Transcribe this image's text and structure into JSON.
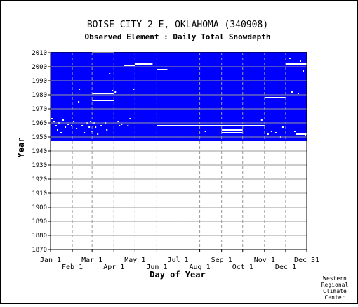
{
  "chart_data": {
    "type": "heatmap",
    "title": "BOISE CITY 2 E, OKLAHOMA   (340908)",
    "subtitle": "Observed Element : Daily Total Snowdepth",
    "xlabel": "Day of Year",
    "ylabel": "Year",
    "credit": [
      "Western",
      "Regional",
      "Climate",
      "Center"
    ],
    "x_ticks_upper": [
      {
        "label": "Jan 1",
        "day": 1
      },
      {
        "label": "Mar 1",
        "day": 60
      },
      {
        "label": "May 1",
        "day": 121
      },
      {
        "label": "Jul 1",
        "day": 182
      },
      {
        "label": "Sep 1",
        "day": 244
      },
      {
        "label": "Nov 1",
        "day": 305
      },
      {
        "label": "Dec 31",
        "day": 365
      }
    ],
    "x_ticks_lower": [
      {
        "label": "Feb 1",
        "day": 32
      },
      {
        "label": "Apr 1",
        "day": 91
      },
      {
        "label": "Jun 1",
        "day": 152
      },
      {
        "label": "Aug 1",
        "day": 213
      },
      {
        "label": "Oct 1",
        "day": 274
      },
      {
        "label": "Dec 1",
        "day": 335
      }
    ],
    "y_ticks": [
      1870,
      1880,
      1890,
      1900,
      1910,
      1920,
      1930,
      1940,
      1950,
      1960,
      1970,
      1980,
      1990,
      2000,
      2010
    ],
    "xlim": [
      1,
      365
    ],
    "ylim": [
      1870,
      2010
    ],
    "record_years": [
      1948,
      2010
    ],
    "fill_color": "#0000ff",
    "gap_color": "#ffffff",
    "grid_color": "#999999",
    "missing_gaps": [
      {
        "year": 2010,
        "day_start": 60,
        "day_end": 91
      },
      {
        "year": 2001,
        "day_start": 105,
        "day_end": 121
      },
      {
        "year": 2002,
        "day_start": 121,
        "day_end": 146
      },
      {
        "year": 1998,
        "day_start": 152,
        "day_end": 167
      },
      {
        "year": 1981,
        "day_start": 60,
        "day_end": 91
      },
      {
        "year": 1976,
        "day_start": 60,
        "day_end": 91
      },
      {
        "year": 1978,
        "day_start": 305,
        "day_end": 335
      },
      {
        "year": 2002,
        "day_start": 335,
        "day_end": 365
      },
      {
        "year": 1958,
        "day_start": 152,
        "day_end": 305
      },
      {
        "year": 1955,
        "day_start": 244,
        "day_end": 274
      },
      {
        "year": 1953,
        "day_start": 244,
        "day_end": 274
      },
      {
        "year": 1952,
        "day_start": 349,
        "day_end": 365
      }
    ],
    "missing_outside": [
      {
        "year": 1948,
        "day_start": 121,
        "day_end": 152
      }
    ],
    "scattered_gaps": [
      [
        2,
        1963
      ],
      [
        5,
        1961
      ],
      [
        8,
        1958
      ],
      [
        10,
        1955
      ],
      [
        12,
        1960
      ],
      [
        15,
        1953
      ],
      [
        18,
        1962
      ],
      [
        21,
        1957
      ],
      [
        25,
        1959
      ],
      [
        30,
        1958
      ],
      [
        33,
        1961
      ],
      [
        37,
        1956
      ],
      [
        40,
        1975
      ],
      [
        41,
        1984
      ],
      [
        45,
        1958
      ],
      [
        48,
        1953
      ],
      [
        52,
        1960
      ],
      [
        55,
        1957
      ],
      [
        57,
        1961
      ],
      [
        59,
        1954
      ],
      [
        62,
        1960
      ],
      [
        64,
        1957
      ],
      [
        67,
        1952
      ],
      [
        72,
        1958
      ],
      [
        78,
        1960
      ],
      [
        80,
        1955
      ],
      [
        84,
        1995
      ],
      [
        88,
        1983
      ],
      [
        92,
        1982
      ],
      [
        96,
        1961
      ],
      [
        98,
        1958
      ],
      [
        101,
        1959
      ],
      [
        110,
        1958
      ],
      [
        113,
        1963
      ],
      [
        118,
        1984
      ],
      [
        220,
        1954
      ],
      [
        300,
        1962
      ],
      [
        309,
        1952
      ],
      [
        314,
        1954
      ],
      [
        320,
        1953
      ],
      [
        327,
        1950
      ],
      [
        330,
        1957
      ],
      [
        340,
        2006
      ],
      [
        343,
        1982
      ],
      [
        347,
        1954
      ],
      [
        352,
        1981
      ],
      [
        355,
        2004
      ],
      [
        359,
        1997
      ],
      [
        362,
        1951
      ]
    ]
  }
}
